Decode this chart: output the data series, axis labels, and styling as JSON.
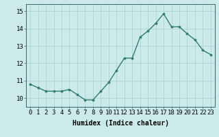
{
  "x": [
    0,
    1,
    2,
    3,
    4,
    5,
    6,
    7,
    8,
    9,
    10,
    11,
    12,
    13,
    14,
    15,
    16,
    17,
    18,
    19,
    20,
    21,
    22,
    23
  ],
  "y": [
    10.8,
    10.6,
    10.4,
    10.4,
    10.4,
    10.5,
    10.2,
    9.9,
    9.9,
    10.4,
    10.9,
    11.6,
    12.3,
    12.3,
    13.5,
    13.85,
    14.3,
    14.85,
    14.1,
    14.1,
    13.7,
    13.35,
    12.75,
    12.5
  ],
  "line_color": "#2e7d6e",
  "marker": "o",
  "markersize": 2.2,
  "linewidth": 1.0,
  "bg_color": "#cceaea",
  "grid_color": "#aad4d4",
  "xlabel": "Humidex (Indice chaleur)",
  "xlabel_fontsize": 7,
  "xtick_labels": [
    "0",
    "1",
    "2",
    "3",
    "4",
    "5",
    "6",
    "7",
    "8",
    "9",
    "10",
    "11",
    "12",
    "13",
    "14",
    "15",
    "16",
    "17",
    "18",
    "19",
    "20",
    "21",
    "22",
    "23"
  ],
  "ytick_vals": [
    10,
    11,
    12,
    13,
    14,
    15
  ],
  "ytick_labels": [
    "10",
    "11",
    "12",
    "13",
    "14",
    "15"
  ],
  "ylim": [
    9.5,
    15.4
  ],
  "xlim": [
    -0.5,
    23.5
  ],
  "tick_fontsize": 6.5,
  "spine_color": "#336666"
}
